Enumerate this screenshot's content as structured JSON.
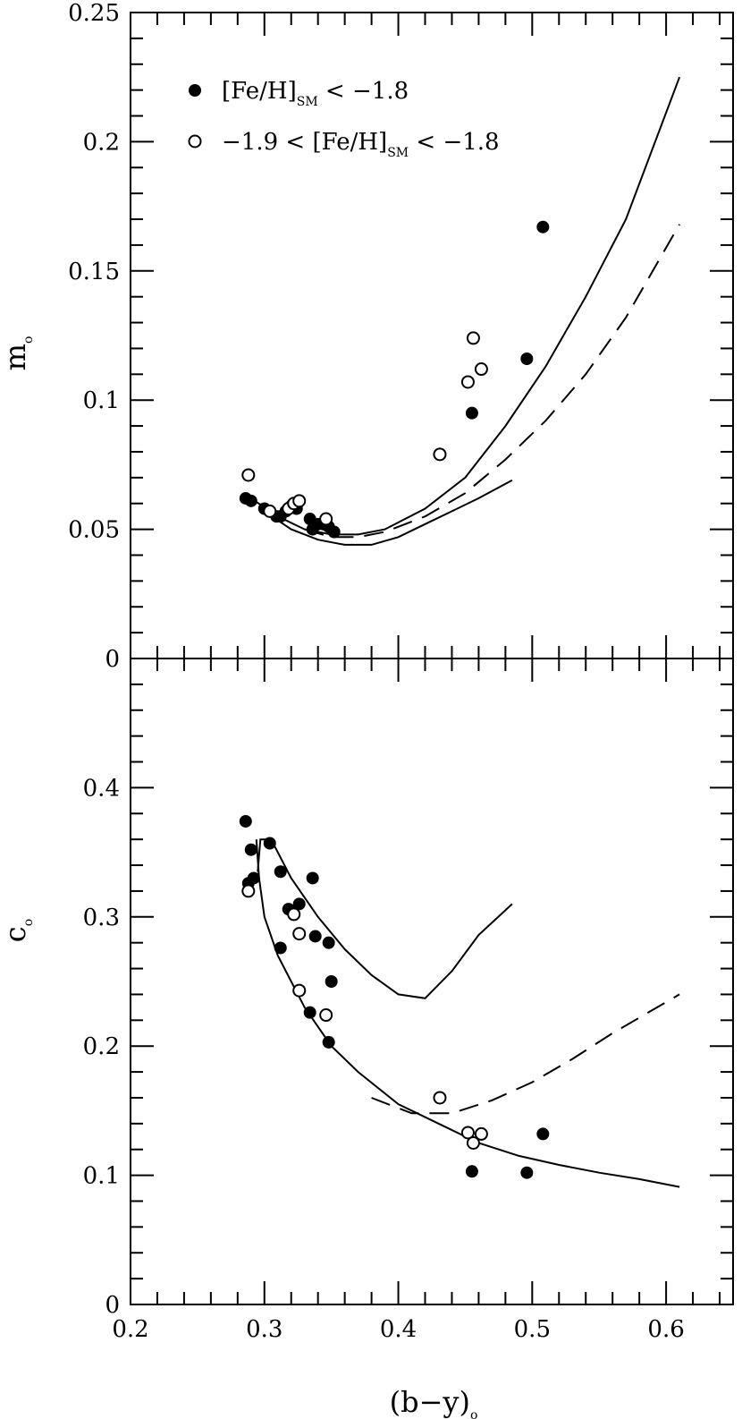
{
  "chart_data": [
    {
      "type": "scatter",
      "panel": "top",
      "ylabel": "m",
      "ylabel_sub": "o",
      "xlim": [
        0.2,
        0.65
      ],
      "ylim": [
        0,
        0.25
      ],
      "x_ticks": [
        "0.2",
        "0.3",
        "0.4",
        "0.5",
        "0.6"
      ],
      "y_ticks": [
        "0",
        "0.05",
        "0.1",
        "0.15",
        "0.2",
        "0.25"
      ],
      "y_tick_values": [
        0,
        0.05,
        0.1,
        0.15,
        0.2,
        0.25
      ],
      "legend": {
        "position": "top-left",
        "entries": [
          {
            "marker": "filled",
            "text": "[Fe/H]",
            "sub": "SM",
            "tail": " < −1.8"
          },
          {
            "marker": "open",
            "text": "−1.9 < [Fe/H]",
            "sub": "SM",
            "tail": " < −1.8"
          }
        ]
      },
      "series": [
        {
          "marker": "filled",
          "points": [
            [
              0.286,
              0.062
            ],
            [
              0.29,
              0.061
            ],
            [
              0.3,
              0.058
            ],
            [
              0.304,
              0.057
            ],
            [
              0.309,
              0.055
            ],
            [
              0.312,
              0.055
            ],
            [
              0.316,
              0.057
            ],
            [
              0.32,
              0.059
            ],
            [
              0.324,
              0.058
            ],
            [
              0.334,
              0.054
            ],
            [
              0.336,
              0.05
            ],
            [
              0.34,
              0.052
            ],
            [
              0.344,
              0.052
            ],
            [
              0.348,
              0.051
            ],
            [
              0.352,
              0.049
            ],
            [
              0.455,
              0.095
            ],
            [
              0.496,
              0.116
            ],
            [
              0.508,
              0.167
            ]
          ]
        },
        {
          "marker": "open",
          "points": [
            [
              0.288,
              0.071
            ],
            [
              0.304,
              0.057
            ],
            [
              0.318,
              0.058
            ],
            [
              0.322,
              0.06
            ],
            [
              0.326,
              0.061
            ],
            [
              0.346,
              0.054
            ],
            [
              0.431,
              0.079
            ],
            [
              0.452,
              0.107
            ],
            [
              0.456,
              0.124
            ],
            [
              0.462,
              0.112
            ]
          ]
        }
      ],
      "curves": [
        {
          "style": "solid",
          "points": [
            [
              0.29,
              0.062
            ],
            [
              0.31,
              0.055
            ],
            [
              0.33,
              0.05
            ],
            [
              0.35,
              0.048
            ],
            [
              0.37,
              0.048
            ],
            [
              0.39,
              0.05
            ],
            [
              0.42,
              0.058
            ],
            [
              0.45,
              0.07
            ],
            [
              0.48,
              0.09
            ],
            [
              0.51,
              0.113
            ],
            [
              0.54,
              0.14
            ],
            [
              0.57,
              0.17
            ],
            [
              0.61,
              0.225
            ]
          ]
        },
        {
          "style": "dashed",
          "points": [
            [
              0.33,
              0.05
            ],
            [
              0.35,
              0.047
            ],
            [
              0.37,
              0.047
            ],
            [
              0.39,
              0.049
            ],
            [
              0.42,
              0.055
            ],
            [
              0.45,
              0.064
            ],
            [
              0.48,
              0.077
            ],
            [
              0.51,
              0.092
            ],
            [
              0.54,
              0.11
            ],
            [
              0.57,
              0.132
            ],
            [
              0.61,
              0.168
            ]
          ]
        },
        {
          "style": "solid",
          "points": [
            [
              0.3,
              0.057
            ],
            [
              0.32,
              0.05
            ],
            [
              0.34,
              0.046
            ],
            [
              0.36,
              0.044
            ],
            [
              0.38,
              0.044
            ],
            [
              0.4,
              0.047
            ],
            [
              0.42,
              0.052
            ],
            [
              0.44,
              0.057
            ],
            [
              0.46,
              0.062
            ],
            [
              0.485,
              0.069
            ]
          ]
        }
      ]
    },
    {
      "type": "scatter",
      "panel": "bottom",
      "xlabel": "(b−y)",
      "xlabel_sub": "o",
      "ylabel": "c",
      "ylabel_sub": "o",
      "xlim": [
        0.2,
        0.65
      ],
      "ylim": [
        0,
        0.5
      ],
      "x_ticks": [
        "0.2",
        "0.3",
        "0.4",
        "0.5",
        "0.6"
      ],
      "x_tick_values": [
        0.2,
        0.3,
        0.4,
        0.5,
        0.6
      ],
      "y_ticks": [
        "0",
        "0.1",
        "0.2",
        "0.3",
        "0.4"
      ],
      "y_tick_values": [
        0,
        0.1,
        0.2,
        0.3,
        0.4
      ],
      "series": [
        {
          "marker": "filled",
          "points": [
            [
              0.286,
              0.374
            ],
            [
              0.29,
              0.352
            ],
            [
              0.292,
              0.33
            ],
            [
              0.288,
              0.326
            ],
            [
              0.304,
              0.357
            ],
            [
              0.312,
              0.335
            ],
            [
              0.312,
              0.276
            ],
            [
              0.318,
              0.306
            ],
            [
              0.326,
              0.31
            ],
            [
              0.334,
              0.226
            ],
            [
              0.336,
              0.33
            ],
            [
              0.338,
              0.285
            ],
            [
              0.348,
              0.28
            ],
            [
              0.35,
              0.25
            ],
            [
              0.348,
              0.203
            ],
            [
              0.455,
              0.103
            ],
            [
              0.496,
              0.102
            ],
            [
              0.508,
              0.132
            ]
          ]
        },
        {
          "marker": "open",
          "points": [
            [
              0.288,
              0.32
            ],
            [
              0.322,
              0.302
            ],
            [
              0.326,
              0.287
            ],
            [
              0.326,
              0.243
            ],
            [
              0.346,
              0.224
            ],
            [
              0.431,
              0.16
            ],
            [
              0.452,
              0.133
            ],
            [
              0.456,
              0.125
            ],
            [
              0.462,
              0.132
            ]
          ]
        }
      ],
      "curves": [
        {
          "style": "solid",
          "points": [
            [
              0.295,
              0.335
            ],
            [
              0.297,
              0.36
            ],
            [
              0.305,
              0.36
            ],
            [
              0.32,
              0.33
            ],
            [
              0.34,
              0.3
            ],
            [
              0.36,
              0.275
            ],
            [
              0.38,
              0.255
            ],
            [
              0.4,
              0.24
            ],
            [
              0.42,
              0.237
            ],
            [
              0.44,
              0.258
            ],
            [
              0.46,
              0.286
            ],
            [
              0.485,
              0.31
            ]
          ]
        },
        {
          "style": "dashed",
          "points": [
            [
              0.38,
              0.16
            ],
            [
              0.41,
              0.148
            ],
            [
              0.44,
              0.148
            ],
            [
              0.47,
              0.158
            ],
            [
              0.5,
              0.172
            ],
            [
              0.53,
              0.19
            ],
            [
              0.56,
              0.21
            ],
            [
              0.61,
              0.24
            ]
          ]
        },
        {
          "style": "solid",
          "points": [
            [
              0.294,
              0.36
            ],
            [
              0.296,
              0.33
            ],
            [
              0.3,
              0.3
            ],
            [
              0.31,
              0.27
            ],
            [
              0.33,
              0.23
            ],
            [
              0.35,
              0.2
            ],
            [
              0.37,
              0.18
            ],
            [
              0.4,
              0.155
            ],
            [
              0.43,
              0.14
            ],
            [
              0.46,
              0.125
            ],
            [
              0.49,
              0.115
            ],
            [
              0.52,
              0.108
            ],
            [
              0.55,
              0.102
            ],
            [
              0.58,
              0.097
            ],
            [
              0.61,
              0.091
            ]
          ]
        }
      ]
    }
  ]
}
